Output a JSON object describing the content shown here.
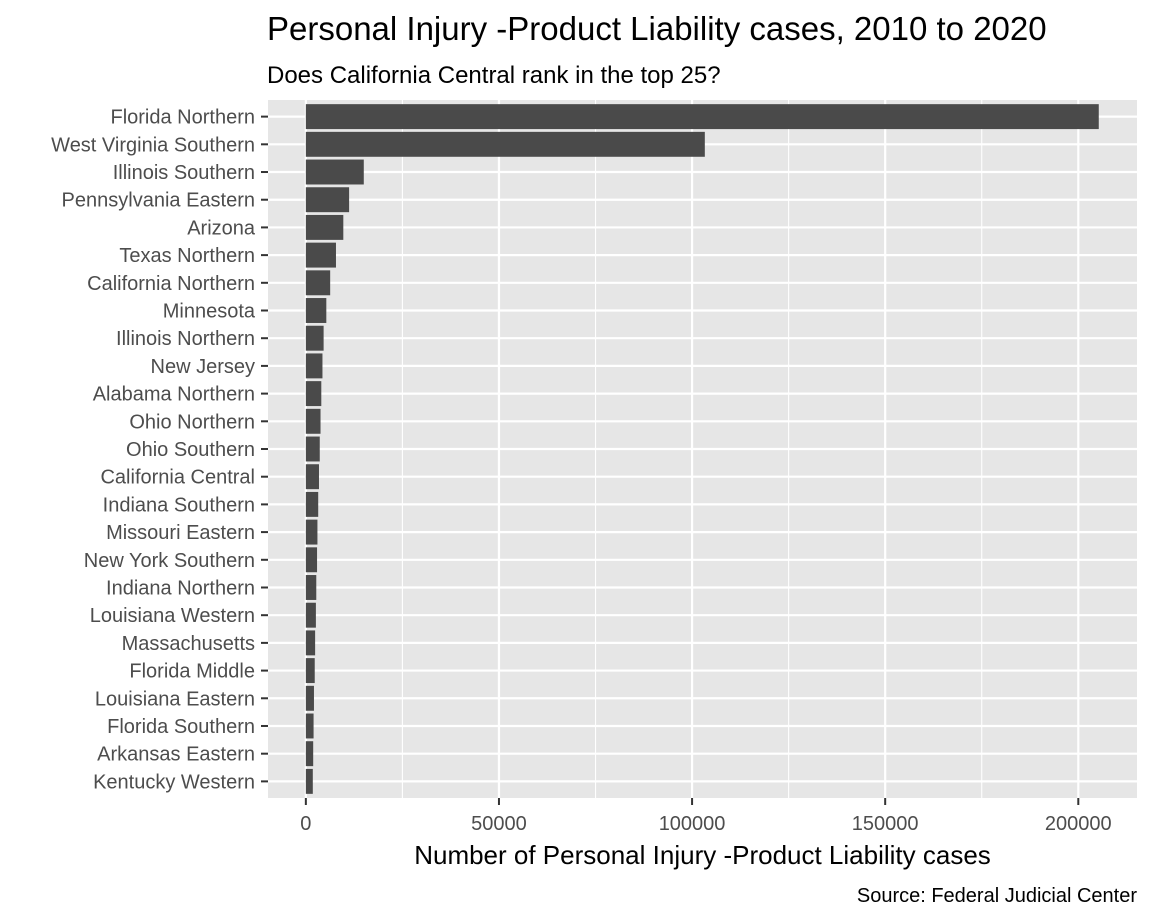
{
  "chart_data": {
    "type": "bar",
    "orientation": "horizontal",
    "title": "Personal Injury -Product Liability cases, 2010 to 2020",
    "subtitle": "Does California Central rank in the top 25?",
    "xlabel": "Number of Personal Injury -Product Liability cases",
    "ylabel": "",
    "caption": "Source: Federal Judicial Center",
    "xlim": [
      -9800,
      215200
    ],
    "xticks": [
      0,
      50000,
      100000,
      150000,
      200000
    ],
    "xtick_labels": [
      "0",
      "50000",
      "100000",
      "150000",
      "200000"
    ],
    "grid": true,
    "bar_color": "#4a4a4a",
    "panel_color": "#e6e6e6",
    "grid_color": "#ffffff",
    "categories": [
      "Florida Northern",
      "West Virginia Southern",
      "Illinois Southern",
      "Pennsylvania Eastern",
      "Arizona",
      "Texas Northern",
      "California Northern",
      "Minnesota",
      "Illinois Northern",
      "New Jersey",
      "Alabama Northern",
      "Ohio Northern",
      "Ohio Southern",
      "California Central",
      "Indiana Southern",
      "Missouri Eastern",
      "New York Southern",
      "Indiana Northern",
      "Louisiana Western",
      "Massachusetts",
      "Florida Middle",
      "Louisiana Eastern",
      "Florida Southern",
      "Arkansas Eastern",
      "Kentucky Western"
    ],
    "values": [
      205300,
      103300,
      15000,
      11200,
      9700,
      7800,
      6300,
      5300,
      4600,
      4300,
      4000,
      3800,
      3600,
      3400,
      3200,
      3000,
      2900,
      2700,
      2600,
      2400,
      2300,
      2100,
      2000,
      1900,
      1800
    ]
  }
}
